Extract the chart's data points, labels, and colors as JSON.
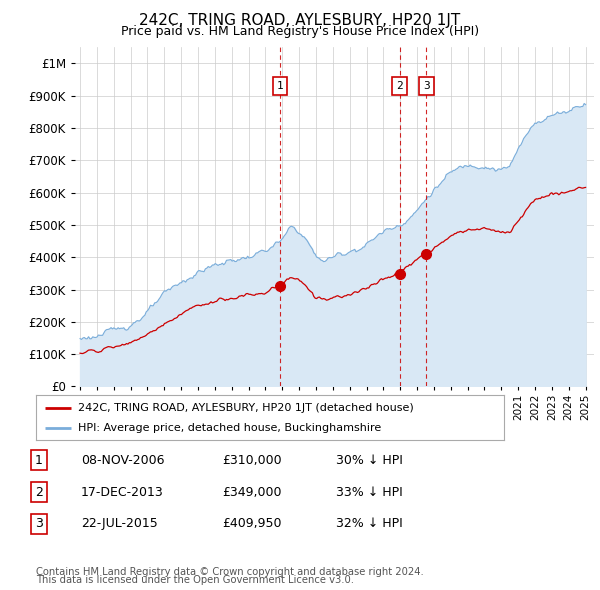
{
  "title": "242C, TRING ROAD, AYLESBURY, HP20 1JT",
  "subtitle": "Price paid vs. HM Land Registry's House Price Index (HPI)",
  "hpi_label": "HPI: Average price, detached house, Buckinghamshire",
  "prop_label": "242C, TRING ROAD, AYLESBURY, HP20 1JT (detached house)",
  "hpi_color": "#7aadda",
  "hpi_fill": "#d9e8f5",
  "prop_color": "#cc0000",
  "marker_color": "#cc0000",
  "vline_color": "#cc0000",
  "grid_color": "#cccccc",
  "background": "#ffffff",
  "transactions": [
    {
      "label": "1",
      "date_str": "08-NOV-2006",
      "x": 2006.86,
      "price": 310000,
      "pct": "30% ↓ HPI"
    },
    {
      "label": "2",
      "date_str": "17-DEC-2013",
      "x": 2013.96,
      "price": 349000,
      "pct": "33% ↓ HPI"
    },
    {
      "label": "3",
      "date_str": "22-JUL-2015",
      "x": 2015.55,
      "price": 409950,
      "pct": "32% ↓ HPI"
    }
  ],
  "footer1": "Contains HM Land Registry data © Crown copyright and database right 2024.",
  "footer2": "This data is licensed under the Open Government Licence v3.0.",
  "ylim": [
    0,
    1050000
  ],
  "xlim": [
    1994.7,
    2025.5
  ]
}
